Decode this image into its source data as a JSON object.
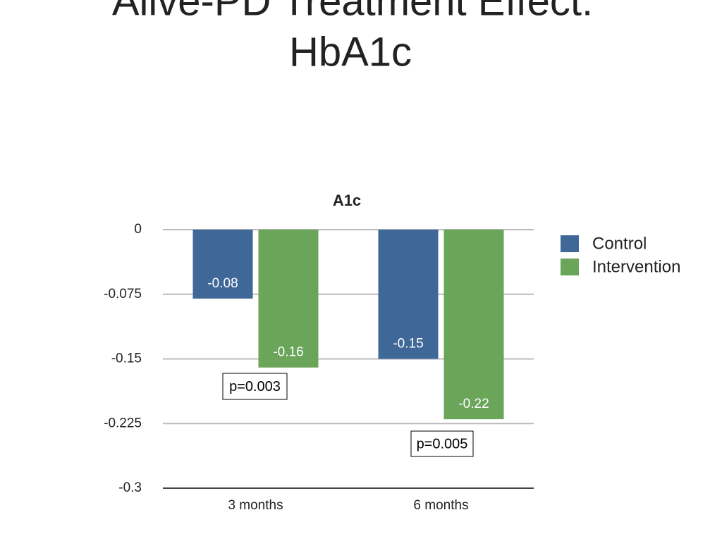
{
  "slide_title": [
    "Alive-PD Treatment Effect:",
    "HbA1c"
  ],
  "chart_data": {
    "type": "bar",
    "title": "A1c",
    "categories": [
      "3 months",
      "6 months"
    ],
    "series": [
      {
        "name": "Control",
        "color": "#3f6898",
        "values": [
          -0.08,
          -0.15
        ]
      },
      {
        "name": "Intervention",
        "color": "#6aa55a",
        "values": [
          -0.16,
          -0.22
        ]
      }
    ],
    "ylim": [
      -0.3,
      0
    ],
    "yticks": [
      0,
      -0.075,
      -0.15,
      -0.225,
      -0.3
    ],
    "grid": true,
    "legend": "right",
    "annotations": [
      "p=0.003",
      "p=0.005"
    ]
  }
}
